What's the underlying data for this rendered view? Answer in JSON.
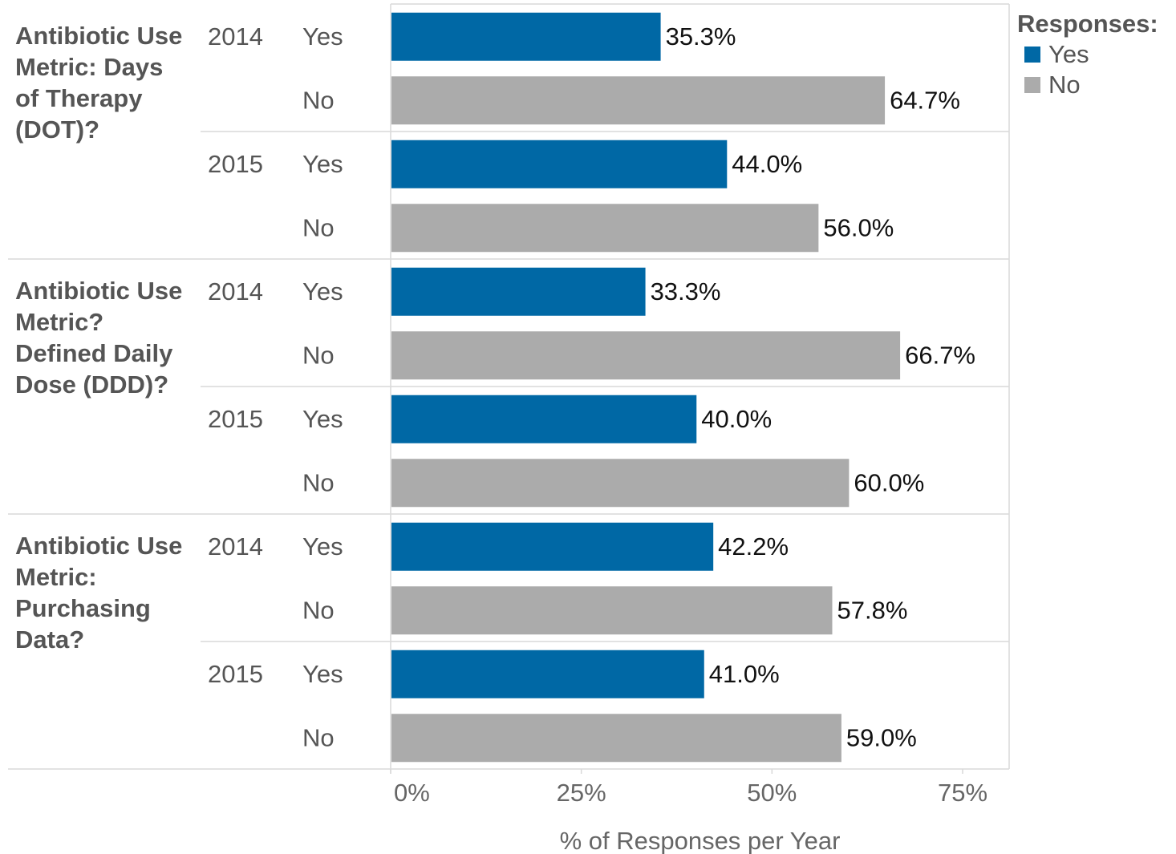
{
  "chart_data": {
    "type": "bar",
    "orientation": "horizontal",
    "xlabel": "% of Responses per Year",
    "xlim": [
      0,
      75
    ],
    "xticks": [
      0,
      25,
      50,
      75
    ],
    "xtick_labels": [
      "0%",
      "25%",
      "50%",
      "75%"
    ],
    "legend": {
      "title": "Responses:",
      "position": "top-right",
      "entries": [
        {
          "label": "Yes",
          "color": "#0068a5"
        },
        {
          "label": "No",
          "color": "#ababab"
        }
      ]
    },
    "series_colors": {
      "Yes": "#0068a5",
      "No": "#ababab"
    },
    "groups": [
      {
        "metric_lines": [
          "Antibiotic Use",
          "Metric: Days",
          "of Therapy",
          "(DOT)?"
        ],
        "years": [
          {
            "year": "2014",
            "bars": [
              {
                "response": "Yes",
                "value": 35.3,
                "label": "35.3%"
              },
              {
                "response": "No",
                "value": 64.7,
                "label": "64.7%"
              }
            ]
          },
          {
            "year": "2015",
            "bars": [
              {
                "response": "Yes",
                "value": 44.0,
                "label": "44.0%"
              },
              {
                "response": "No",
                "value": 56.0,
                "label": "56.0%"
              }
            ]
          }
        ]
      },
      {
        "metric_lines": [
          "Antibiotic Use",
          "Metric?",
          "Defined Daily",
          "Dose (DDD)?"
        ],
        "years": [
          {
            "year": "2014",
            "bars": [
              {
                "response": "Yes",
                "value": 33.3,
                "label": "33.3%"
              },
              {
                "response": "No",
                "value": 66.7,
                "label": "66.7%"
              }
            ]
          },
          {
            "year": "2015",
            "bars": [
              {
                "response": "Yes",
                "value": 40.0,
                "label": "40.0%"
              },
              {
                "response": "No",
                "value": 60.0,
                "label": "60.0%"
              }
            ]
          }
        ]
      },
      {
        "metric_lines": [
          "Antibiotic Use",
          "Metric:",
          "Purchasing",
          "Data?"
        ],
        "years": [
          {
            "year": "2014",
            "bars": [
              {
                "response": "Yes",
                "value": 42.2,
                "label": "42.2%"
              },
              {
                "response": "No",
                "value": 57.8,
                "label": "57.8%"
              }
            ]
          },
          {
            "year": "2015",
            "bars": [
              {
                "response": "Yes",
                "value": 41.0,
                "label": "41.0%"
              },
              {
                "response": "No",
                "value": 59.0,
                "label": "59.0%"
              }
            ]
          }
        ]
      }
    ]
  }
}
